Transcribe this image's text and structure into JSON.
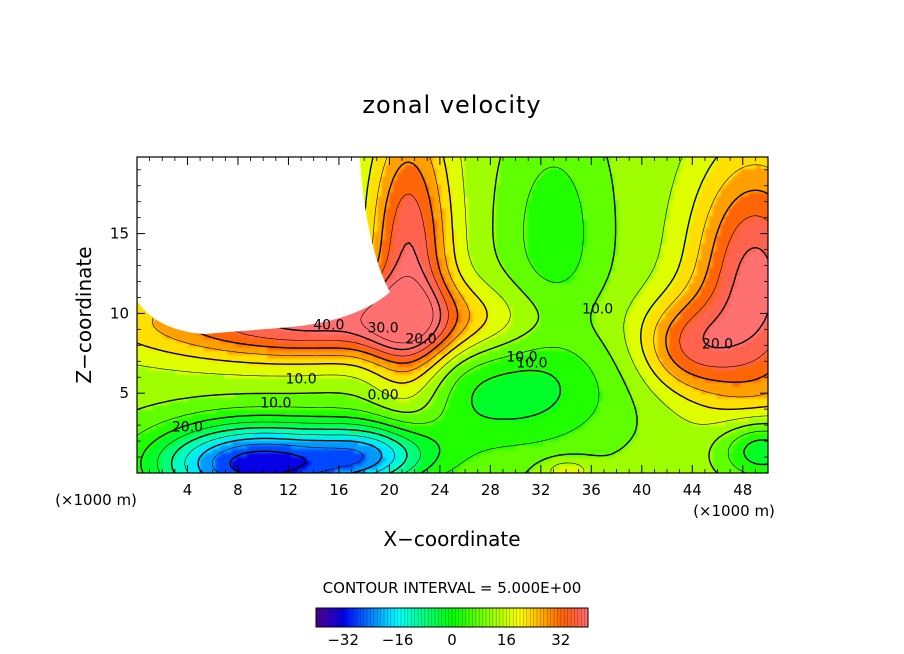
{
  "chart_data": {
    "type": "heatmap",
    "title": "zonal velocity",
    "xlabel": "X−coordinate",
    "ylabel": "Z−coordinate",
    "x_unit_label": "(×1000 m)",
    "xlim": [
      0,
      50
    ],
    "ylim": [
      0,
      19.8
    ],
    "x_ticks": [
      4,
      8,
      12,
      16,
      20,
      24,
      28,
      32,
      36,
      40,
      44,
      48
    ],
    "y_ticks": [
      5,
      10,
      15
    ],
    "x_tick_labels": [
      "4",
      "8",
      "12",
      "16",
      "20",
      "24",
      "28",
      "32",
      "36",
      "40",
      "44",
      "48"
    ],
    "y_tick_labels": [
      "5",
      "10",
      "15"
    ],
    "contour_interval_text": "CONTOUR INTERVAL = 5.000E+00",
    "contour_labels": [
      {
        "text": "40.0",
        "x": 15.2,
        "y": 9.0
      },
      {
        "text": "30.0",
        "x": 19.5,
        "y": 8.8
      },
      {
        "text": "20.0",
        "x": 22.5,
        "y": 8.1
      },
      {
        "text": "10.0",
        "x": 13,
        "y": 5.6
      },
      {
        "text": "10.0",
        "x": 11,
        "y": 4.1
      },
      {
        "text": "0.00",
        "x": 19.5,
        "y": 4.6
      },
      {
        "text": "20.0",
        "x": 4,
        "y": 2.6
      },
      {
        "text": "10.0",
        "x": 30.5,
        "y": 7
      },
      {
        "text": "10.0",
        "x": 31.3,
        "y": 6.6
      },
      {
        "text": "10.0",
        "x": 36.5,
        "y": 10
      },
      {
        "text": "20.0",
        "x": 46,
        "y": 7.8
      }
    ],
    "colorbar": {
      "range": [
        -40,
        40
      ],
      "tick_values": [
        -32,
        -16,
        0,
        16,
        32
      ],
      "tick_labels": [
        "−32",
        "−16",
        "0",
        "16",
        "32"
      ]
    },
    "field_description_values": {
      "jet_core_max": 40,
      "near_surface_min": -35
    },
    "colors": {
      "masked": "#ffffff",
      "contour": "#000000"
    }
  }
}
